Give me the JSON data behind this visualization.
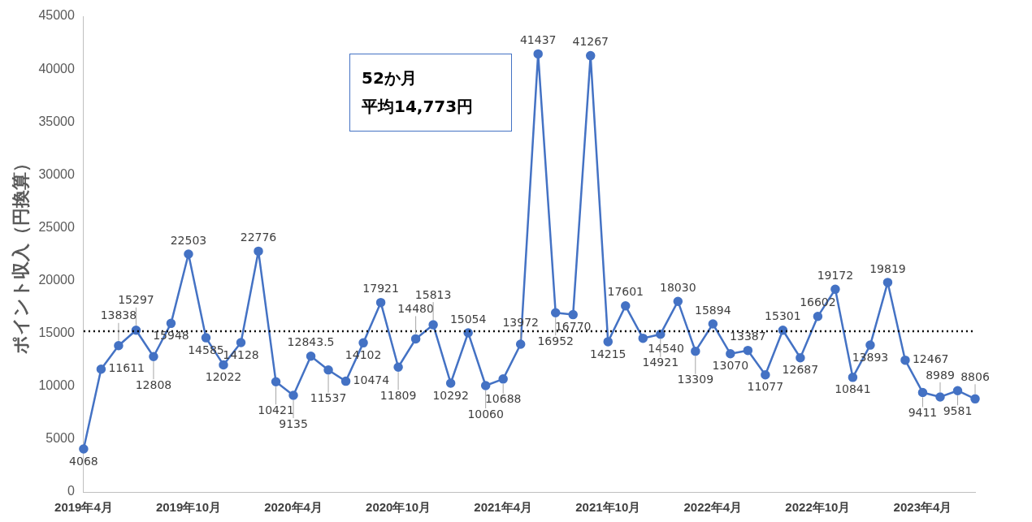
{
  "chart_data": {
    "type": "line",
    "ylabel": "ポイント収入（円換算）",
    "categories": [
      "2019年4月",
      null,
      null,
      null,
      null,
      null,
      "2019年10月",
      null,
      null,
      null,
      null,
      null,
      "2020年4月",
      null,
      null,
      null,
      null,
      null,
      "2020年10月",
      null,
      null,
      null,
      null,
      null,
      "2021年4月",
      null,
      null,
      null,
      null,
      null,
      "2021年10月",
      null,
      null,
      null,
      null,
      null,
      "2022年4月",
      null,
      null,
      null,
      null,
      null,
      "2022年10月",
      null,
      null,
      null,
      null,
      null,
      "2023年4月",
      null,
      null,
      null
    ],
    "series": [
      {
        "color": "#4472c4",
        "values": [
          4068,
          11611,
          13838,
          15297,
          12808,
          15948,
          22503,
          14585,
          12022,
          14128,
          22776,
          10421,
          9135,
          12843.5,
          11537,
          10474,
          14102,
          17921,
          11809,
          14480,
          15813,
          10292,
          15054,
          10060,
          10688,
          13972,
          41437,
          16952,
          16770,
          41267,
          14215,
          17601,
          14540,
          14921,
          18030,
          13309,
          15894,
          13070,
          13387,
          11077,
          15301,
          12687,
          16602,
          19172,
          10841,
          13893,
          19819,
          12467,
          9411,
          8989,
          9581,
          8806
        ]
      }
    ],
    "ylim": [
      0,
      45000
    ],
    "yticks": [
      0,
      5000,
      10000,
      15000,
      20000,
      25000,
      30000,
      35000,
      40000,
      45000
    ],
    "grid": false,
    "legend": false,
    "marker": "circle",
    "line_style": "solid",
    "data_labels": true,
    "ref_lines": [
      {
        "axis": "y",
        "value": 15200,
        "color": "#000000",
        "line_style": "dotted"
      }
    ],
    "annotations": [
      "52か月",
      "平均14,773円"
    ]
  }
}
